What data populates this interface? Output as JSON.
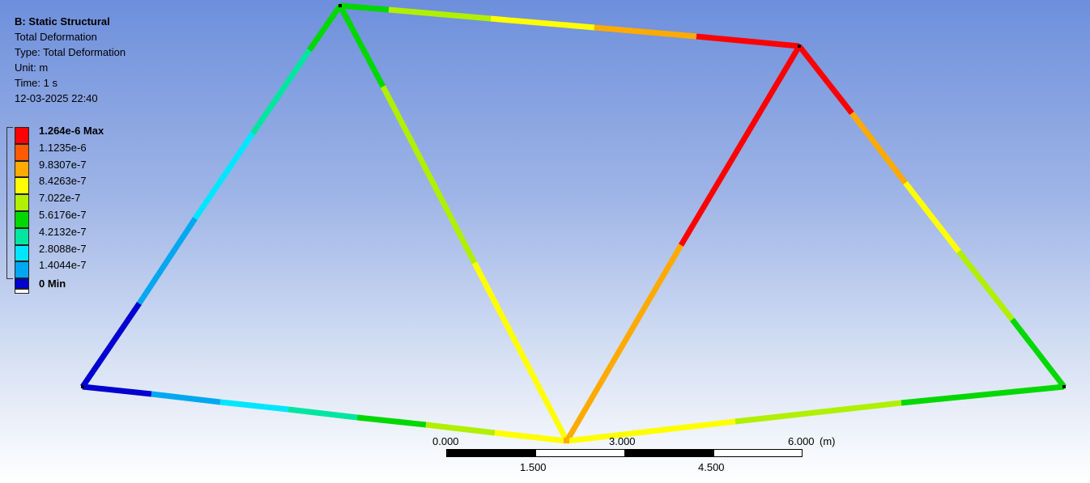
{
  "info": {
    "title": "B: Static Structural",
    "result": "Total Deformation",
    "type": "Type: Total Deformation",
    "unit": "Unit: m",
    "time": "Time: 1 s",
    "timestamp": "12-03-2025 22:40"
  },
  "legend": {
    "entries": [
      {
        "label": "1.264e-6 Max",
        "color": "#ff0000",
        "bold": true
      },
      {
        "label": "1.1235e-6",
        "color": "#ff5a00",
        "bold": false
      },
      {
        "label": "9.8307e-7",
        "color": "#ffaa00",
        "bold": false
      },
      {
        "label": "8.4263e-7",
        "color": "#ffff00",
        "bold": false
      },
      {
        "label": "7.022e-7",
        "color": "#b0f000",
        "bold": false
      },
      {
        "label": "5.6176e-7",
        "color": "#00d800",
        "bold": false
      },
      {
        "label": "4.2132e-7",
        "color": "#00e6a0",
        "bold": false
      },
      {
        "label": "2.8088e-7",
        "color": "#00e6ff",
        "bold": false
      },
      {
        "label": "1.4044e-7",
        "color": "#00a8f0",
        "bold": false
      },
      {
        "label": "0 Min",
        "color": "#0000d0",
        "bold": true
      }
    ]
  },
  "scale_bar": {
    "top_labels": [
      "0.000",
      "3.000",
      "6.000"
    ],
    "unit": "(m)",
    "bottom_labels": [
      "1.500",
      "4.500"
    ]
  },
  "model": {
    "nodes": [
      {
        "id": "n1",
        "color": "#000000"
      },
      {
        "id": "n2",
        "color": "#000000"
      },
      {
        "id": "n3",
        "color": "#000000"
      },
      {
        "id": "n4",
        "color": "#000000"
      },
      {
        "id": "n5",
        "color": "#000000"
      }
    ]
  }
}
